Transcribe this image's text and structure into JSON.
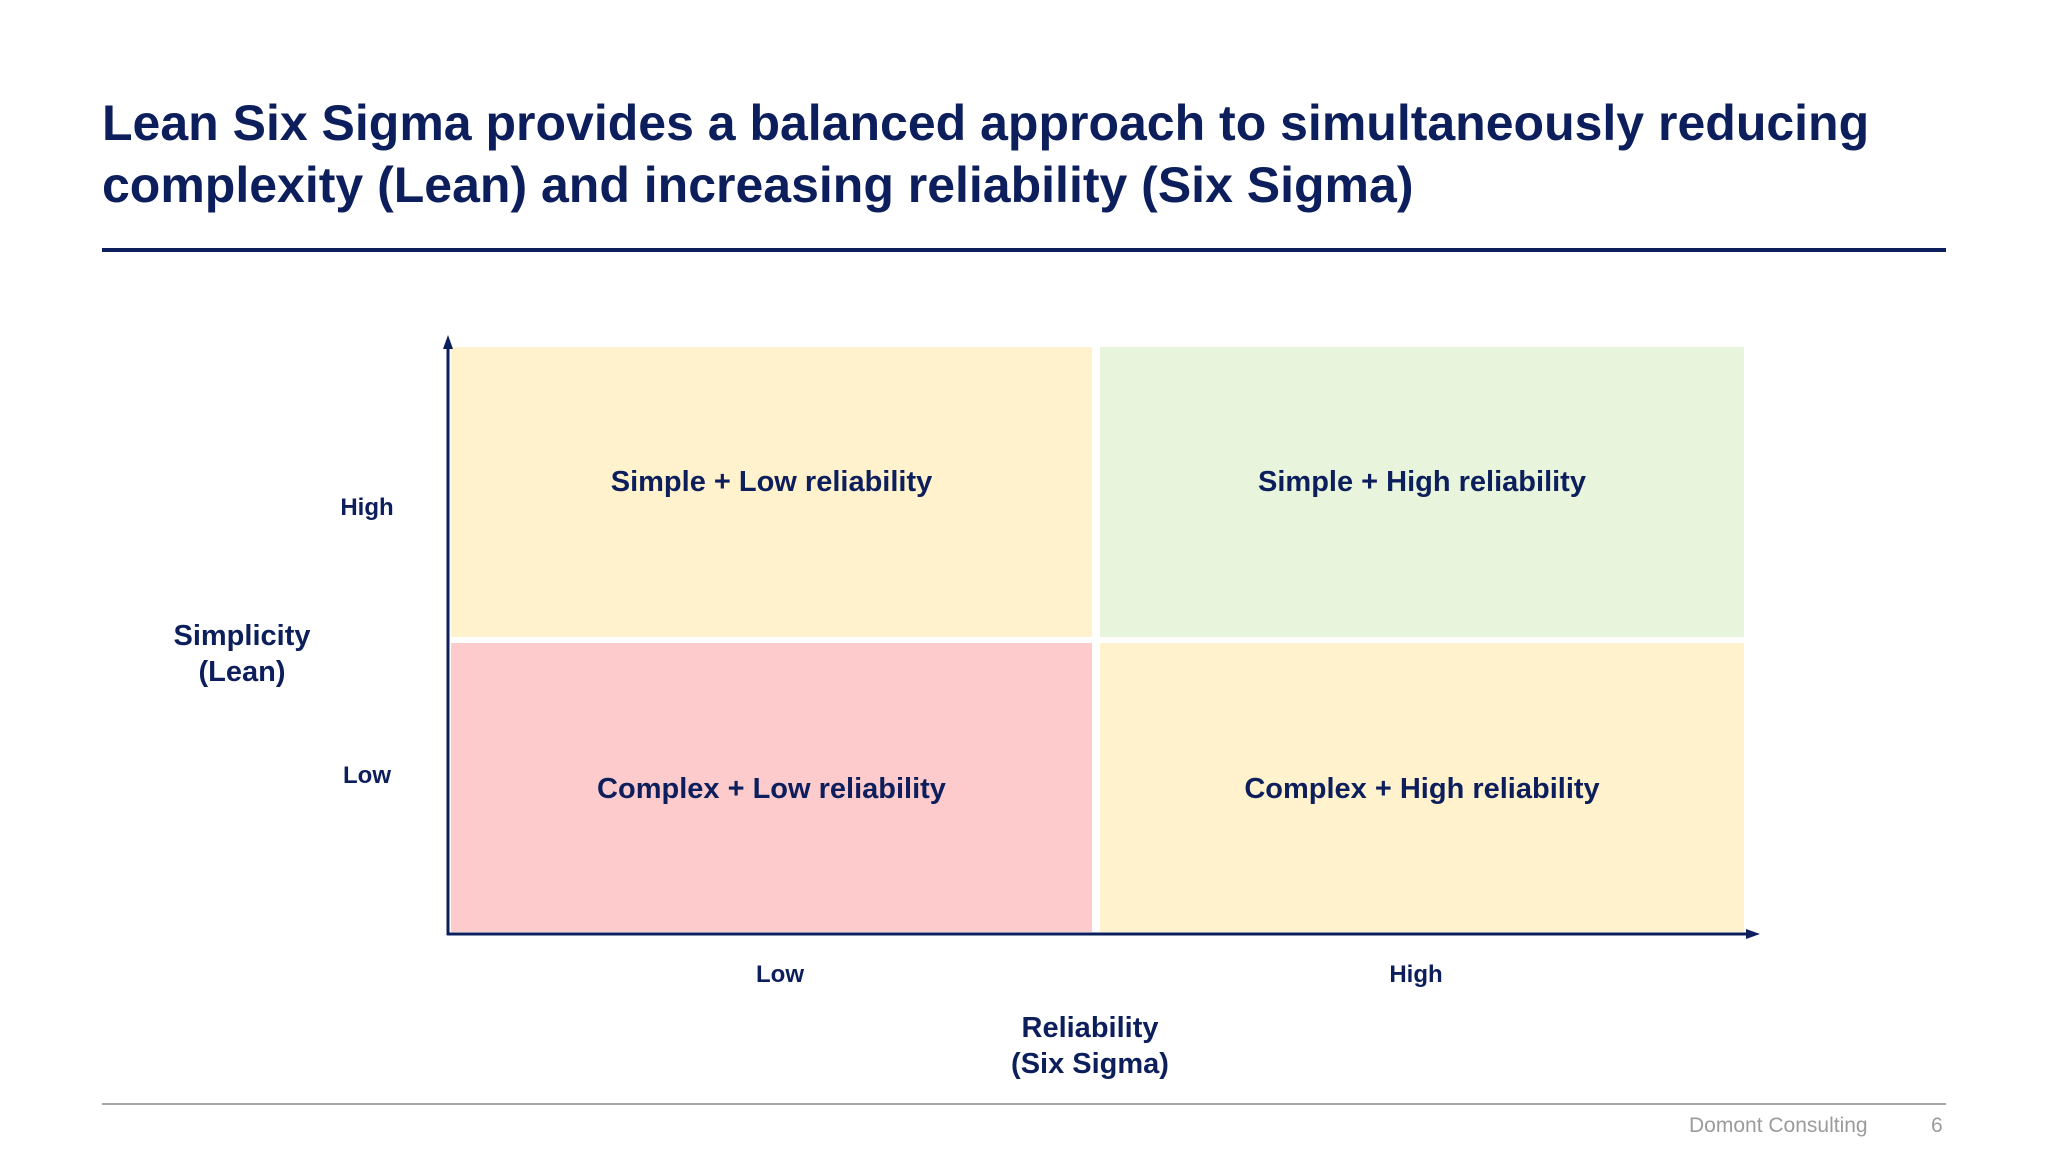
{
  "title": "Lean Six Sigma provides a balanced approach to simultaneously reducing complexity (Lean) and increasing reliability (Six Sigma)",
  "matrix": {
    "y_axis": {
      "title_line1": "Simplicity",
      "title_line2": "(Lean)",
      "high": "High",
      "low": "Low"
    },
    "x_axis": {
      "title_line1": "Reliability",
      "title_line2": "(Six Sigma)",
      "low": "Low",
      "high": "High"
    },
    "quadrants": {
      "top_left": {
        "label": "Simple + Low reliability",
        "color": "#fff2cc"
      },
      "top_right": {
        "label": "Simple + High reliability",
        "color": "#e8f5dc"
      },
      "bottom_left": {
        "label": "Complex + Low reliability",
        "color": "#fdcbcb"
      },
      "bottom_right": {
        "label": "Complex + High reliability",
        "color": "#fff2cc"
      }
    }
  },
  "footer": {
    "company": "Domont Consulting",
    "page": "6"
  }
}
